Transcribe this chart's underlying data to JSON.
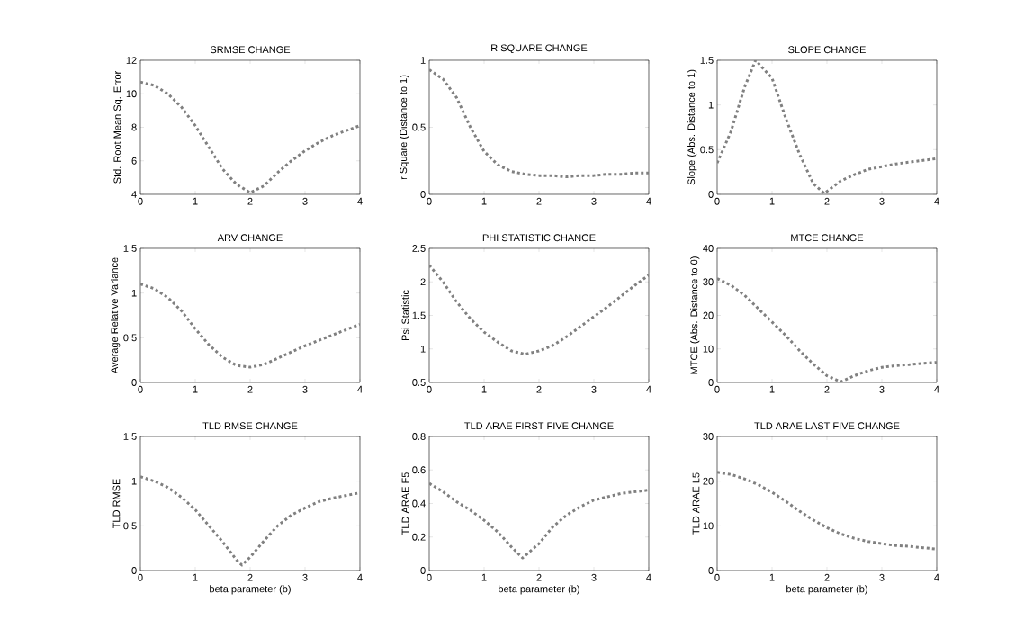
{
  "chart_data": [
    {
      "type": "line",
      "title": "SRMSE CHANGE",
      "ylabel": "Std. Root Mean Sq. Error",
      "line_style": "dotted",
      "xlim": [
        0,
        4
      ],
      "ylim": [
        4,
        12
      ],
      "xticks": [
        0,
        1,
        2,
        3,
        4
      ],
      "yticks": [
        4,
        6,
        8,
        10,
        12
      ],
      "x": [
        0,
        0.25,
        0.5,
        0.75,
        1,
        1.25,
        1.5,
        1.75,
        2,
        2.25,
        2.5,
        2.75,
        3,
        3.25,
        3.5,
        3.75,
        4
      ],
      "series": [
        {
          "color": "#808080",
          "values": [
            10.7,
            10.5,
            10.0,
            9.2,
            8.1,
            6.8,
            5.5,
            4.6,
            4.1,
            4.5,
            5.3,
            6.0,
            6.6,
            7.1,
            7.5,
            7.8,
            8.1
          ]
        }
      ]
    },
    {
      "type": "line",
      "title": "R SQUARE CHANGE",
      "ylabel": "r Square (Distance to 1)",
      "line_style": "dotted",
      "xlim": [
        0,
        4
      ],
      "ylim": [
        0,
        1
      ],
      "xticks": [
        0,
        1,
        2,
        3,
        4
      ],
      "yticks": [
        0,
        0.5,
        1
      ],
      "x": [
        0,
        0.25,
        0.5,
        0.75,
        1,
        1.25,
        1.5,
        1.75,
        2,
        2.25,
        2.5,
        2.75,
        3,
        3.25,
        3.5,
        3.75,
        4
      ],
      "series": [
        {
          "color": "#808080",
          "values": [
            0.93,
            0.86,
            0.72,
            0.5,
            0.32,
            0.22,
            0.17,
            0.15,
            0.14,
            0.14,
            0.13,
            0.14,
            0.14,
            0.15,
            0.15,
            0.16,
            0.16
          ]
        }
      ]
    },
    {
      "type": "line",
      "title": "SLOPE CHANGE",
      "ylabel": "Slope (Abs. Distance to 1)",
      "line_style": "dotted",
      "xlim": [
        0,
        4
      ],
      "ylim": [
        0,
        1.5
      ],
      "xticks": [
        0,
        1,
        2,
        3,
        4
      ],
      "yticks": [
        0,
        0.5,
        1,
        1.5
      ],
      "x": [
        0,
        0.25,
        0.5,
        0.7,
        1,
        1.25,
        1.5,
        1.75,
        1.95,
        2.25,
        2.5,
        2.75,
        3,
        3.25,
        3.5,
        3.75,
        4
      ],
      "series": [
        {
          "color": "#808080",
          "values": [
            0.35,
            0.7,
            1.2,
            1.5,
            1.3,
            0.85,
            0.45,
            0.12,
            0.01,
            0.15,
            0.22,
            0.28,
            0.31,
            0.34,
            0.36,
            0.38,
            0.4
          ]
        }
      ]
    },
    {
      "type": "line",
      "title": "ARV CHANGE",
      "ylabel": "Average Relative Variance",
      "line_style": "dotted",
      "xlim": [
        0,
        4
      ],
      "ylim": [
        0,
        1.5
      ],
      "xticks": [
        0,
        1,
        2,
        3,
        4
      ],
      "yticks": [
        0,
        0.5,
        1,
        1.5
      ],
      "x": [
        0,
        0.25,
        0.5,
        0.75,
        1,
        1.25,
        1.5,
        1.75,
        2,
        2.25,
        2.5,
        2.75,
        3,
        3.25,
        3.5,
        3.75,
        4
      ],
      "series": [
        {
          "color": "#808080",
          "values": [
            1.1,
            1.05,
            0.95,
            0.8,
            0.6,
            0.42,
            0.28,
            0.19,
            0.17,
            0.2,
            0.27,
            0.34,
            0.41,
            0.47,
            0.53,
            0.59,
            0.65
          ]
        }
      ]
    },
    {
      "type": "line",
      "title": "PHI STATISTIC CHANGE",
      "ylabel": "Psi Statistic",
      "line_style": "dotted",
      "xlim": [
        0,
        4
      ],
      "ylim": [
        0.5,
        2.5
      ],
      "xticks": [
        0,
        1,
        2,
        3,
        4
      ],
      "yticks": [
        0.5,
        1,
        1.5,
        2,
        2.5
      ],
      "x": [
        0,
        0.25,
        0.5,
        0.75,
        1,
        1.25,
        1.5,
        1.75,
        2,
        2.25,
        2.5,
        2.75,
        3,
        3.25,
        3.5,
        3.75,
        4
      ],
      "series": [
        {
          "color": "#808080",
          "values": [
            2.25,
            2.0,
            1.7,
            1.45,
            1.25,
            1.1,
            0.97,
            0.92,
            0.97,
            1.05,
            1.18,
            1.33,
            1.48,
            1.63,
            1.79,
            1.95,
            2.1
          ]
        }
      ]
    },
    {
      "type": "line",
      "title": "MTCE CHANGE",
      "ylabel": "MTCE (Abs. Distance to 0)",
      "line_style": "dotted",
      "xlim": [
        0,
        4
      ],
      "ylim": [
        0,
        40
      ],
      "xticks": [
        0,
        1,
        2,
        3,
        4
      ],
      "yticks": [
        0,
        10,
        20,
        30,
        40
      ],
      "x": [
        0,
        0.25,
        0.5,
        0.75,
        1,
        1.25,
        1.5,
        1.75,
        2,
        2.25,
        2.5,
        2.75,
        3,
        3.25,
        3.5,
        3.75,
        4
      ],
      "series": [
        {
          "color": "#808080",
          "values": [
            31,
            29,
            26,
            22,
            18,
            14,
            9.5,
            5.5,
            2,
            0.2,
            2,
            3.5,
            4.5,
            5,
            5.3,
            5.7,
            6
          ]
        }
      ]
    },
    {
      "type": "line",
      "title": "TLD RMSE CHANGE",
      "xlabel": "beta parameter (b)",
      "ylabel": "TLD RMSE",
      "line_style": "dotted",
      "xlim": [
        0,
        4
      ],
      "ylim": [
        0,
        1.5
      ],
      "xticks": [
        0,
        1,
        2,
        3,
        4
      ],
      "yticks": [
        0,
        0.5,
        1,
        1.5
      ],
      "x": [
        0,
        0.25,
        0.5,
        0.75,
        1,
        1.25,
        1.5,
        1.75,
        1.85,
        2,
        2.25,
        2.5,
        2.75,
        3,
        3.25,
        3.5,
        3.75,
        4
      ],
      "series": [
        {
          "color": "#808080",
          "values": [
            1.05,
            1.0,
            0.93,
            0.82,
            0.68,
            0.5,
            0.32,
            0.12,
            0.06,
            0.15,
            0.33,
            0.5,
            0.62,
            0.7,
            0.77,
            0.81,
            0.84,
            0.87
          ]
        }
      ]
    },
    {
      "type": "line",
      "title": "TLD ARAE FIRST FIVE CHANGE",
      "xlabel": "beta parameter (b)",
      "ylabel": "TLD ARAE F5",
      "line_style": "dotted",
      "xlim": [
        0,
        4
      ],
      "ylim": [
        0,
        0.8
      ],
      "xticks": [
        0,
        1,
        2,
        3,
        4
      ],
      "yticks": [
        0,
        0.2,
        0.4,
        0.6,
        0.8
      ],
      "x": [
        0,
        0.25,
        0.5,
        0.75,
        1,
        1.25,
        1.5,
        1.7,
        2,
        2.25,
        2.5,
        2.75,
        3,
        3.25,
        3.5,
        3.75,
        4
      ],
      "series": [
        {
          "color": "#808080",
          "values": [
            0.52,
            0.47,
            0.41,
            0.36,
            0.3,
            0.23,
            0.14,
            0.075,
            0.16,
            0.26,
            0.33,
            0.38,
            0.42,
            0.44,
            0.46,
            0.47,
            0.48
          ]
        }
      ]
    },
    {
      "type": "line",
      "title": "TLD ARAE LAST FIVE CHANGE",
      "xlabel": "beta parameter (b)",
      "ylabel": "TLD ARAE L5",
      "line_style": "dotted",
      "xlim": [
        0,
        4
      ],
      "ylim": [
        0,
        30
      ],
      "xticks": [
        0,
        1,
        2,
        3,
        4
      ],
      "yticks": [
        0,
        10,
        20,
        30
      ],
      "x": [
        0,
        0.25,
        0.5,
        0.75,
        1,
        1.25,
        1.5,
        1.75,
        2,
        2.25,
        2.5,
        2.75,
        3,
        3.25,
        3.5,
        3.75,
        4
      ],
      "series": [
        {
          "color": "#808080",
          "values": [
            22,
            21.5,
            20.5,
            19.2,
            17.5,
            15.5,
            13.3,
            11.3,
            9.6,
            8.2,
            7.2,
            6.5,
            6.0,
            5.6,
            5.4,
            5.1,
            4.8
          ]
        }
      ]
    }
  ]
}
